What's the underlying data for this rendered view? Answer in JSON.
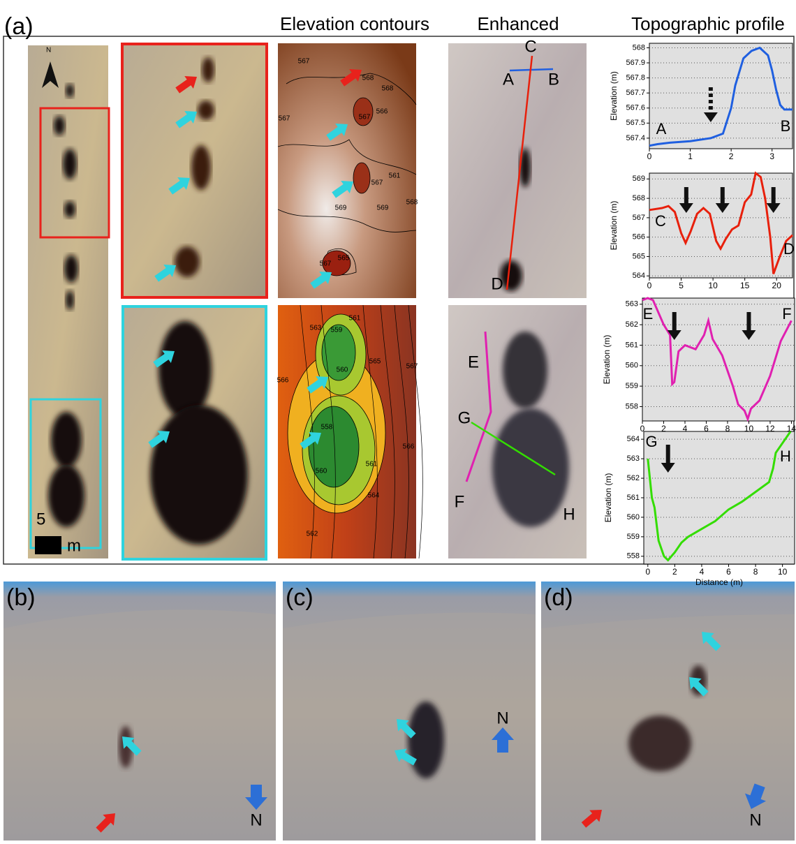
{
  "figure": {
    "panel_labels": [
      "(a)",
      "(b)",
      "(c)",
      "(d)"
    ],
    "column_titles": [
      "Elevation contours",
      "Enhanced",
      "Topographic profile"
    ],
    "scale_bar": {
      "value": "5",
      "unit": "m"
    },
    "north": "N",
    "contours_top": [
      "567",
      "568",
      "568",
      "566",
      "567",
      "567",
      "561",
      "567",
      "569",
      "569",
      "568",
      "565",
      "567"
    ],
    "contours_bottom": [
      "561",
      "563",
      "559",
      "565",
      "567",
      "566",
      "560",
      "566",
      "558",
      "560",
      "561",
      "564",
      "562"
    ],
    "profile_letters": [
      "A",
      "B",
      "C",
      "D",
      "E",
      "F",
      "G",
      "H"
    ],
    "north_labels": [
      "N",
      "N",
      "N"
    ]
  },
  "chart_data": [
    {
      "type": "line",
      "ylabel": "Elevation (m)",
      "color": "#1f5fe0",
      "annotations": [
        "A",
        "B"
      ],
      "arrows": [
        1.5
      ],
      "arrow_dashed": true,
      "x": [
        0,
        0.2,
        0.5,
        1,
        1.5,
        1.8,
        2.0,
        2.1,
        2.3,
        2.5,
        2.7,
        2.9,
        3.0,
        3.1,
        3.2,
        3.3,
        3.5
      ],
      "values": [
        567.35,
        567.36,
        567.37,
        567.38,
        567.4,
        567.43,
        567.6,
        567.75,
        567.93,
        567.98,
        568.0,
        567.95,
        567.85,
        567.72,
        567.62,
        567.59,
        567.59
      ],
      "xlim": [
        0,
        3.5
      ],
      "xticks": [
        0,
        1,
        2,
        3
      ],
      "ylim": [
        567.33,
        568.03
      ],
      "yticks": [
        567.4,
        567.5,
        567.6,
        567.7,
        567.8,
        567.9,
        568
      ],
      "grid": true
    },
    {
      "type": "line",
      "ylabel": "Elevation (m)",
      "color": "#e8200c",
      "annotations": [
        "C",
        "D"
      ],
      "arrows": [
        5.8,
        11.5,
        19.5
      ],
      "arrow_dashed": false,
      "x": [
        0,
        2,
        3,
        4,
        5,
        5.7,
        6.5,
        7.5,
        8.5,
        9.5,
        10.5,
        11.2,
        12,
        13,
        14,
        15,
        16,
        16.7,
        17.5,
        18.2,
        19,
        19.5,
        20.5,
        21.5,
        22.5
      ],
      "values": [
        567.4,
        567.5,
        567.6,
        567.3,
        566.2,
        565.7,
        566.3,
        567.2,
        567.5,
        567.2,
        565.8,
        565.4,
        565.9,
        566.4,
        566.6,
        567.8,
        568.2,
        569.3,
        569.1,
        568,
        566,
        564.1,
        565,
        565.8,
        566.1
      ],
      "xlim": [
        0,
        22.5
      ],
      "xticks": [
        0,
        5,
        10,
        15,
        20
      ],
      "ylim": [
        563.9,
        569.3
      ],
      "yticks": [
        564,
        565,
        566,
        567,
        568,
        569
      ],
      "grid": true
    },
    {
      "type": "line",
      "ylabel": "Elevation (m)",
      "color": "#e020b0",
      "annotations": [
        "E",
        "F"
      ],
      "arrows": [
        3,
        10
      ],
      "arrow_dashed": false,
      "x": [
        0,
        0.5,
        1,
        2,
        2.6,
        2.8,
        3,
        3.4,
        4,
        5,
        5.8,
        6.2,
        6.6,
        7.5,
        8.5,
        9,
        9.6,
        9.9,
        10.2,
        11,
        12,
        13,
        14
      ],
      "values": [
        563.2,
        563.3,
        563.2,
        562,
        561.5,
        559.1,
        559.2,
        560.7,
        561,
        560.8,
        561.5,
        562.2,
        561.3,
        560.5,
        559,
        558.1,
        557.8,
        557.4,
        557.9,
        558.3,
        559.5,
        561.2,
        562.2
      ],
      "xlim": [
        0,
        14.3
      ],
      "xticks": [
        0,
        2,
        4,
        6,
        8,
        10,
        12,
        14
      ],
      "ylim": [
        557.3,
        563.3
      ],
      "yticks": [
        558,
        559,
        560,
        561,
        562,
        563
      ],
      "grid": true
    },
    {
      "type": "line",
      "ylabel": "Elevation (m)",
      "xlabel": "Distance (m)",
      "color": "#33dd00",
      "annotations": [
        "G",
        "H"
      ],
      "arrows": [
        1.5
      ],
      "arrow_dashed": false,
      "x": [
        0,
        0.3,
        0.5,
        0.8,
        1.2,
        1.5,
        2,
        2.5,
        3,
        4,
        5,
        6,
        7,
        8,
        9,
        9.3,
        9.5,
        10,
        10.6
      ],
      "values": [
        563,
        561,
        560.5,
        558.8,
        558,
        557.8,
        558.2,
        558.7,
        559,
        559.4,
        559.8,
        560.4,
        560.8,
        561.3,
        561.8,
        562.5,
        563.3,
        563.8,
        564.4
      ],
      "xlim": [
        -0.3,
        10.9
      ],
      "xticks": [
        0,
        2,
        4,
        6,
        8,
        10
      ],
      "ylim": [
        557.6,
        564.4
      ],
      "yticks": [
        558,
        559,
        560,
        561,
        562,
        563,
        564
      ],
      "grid": true
    }
  ]
}
